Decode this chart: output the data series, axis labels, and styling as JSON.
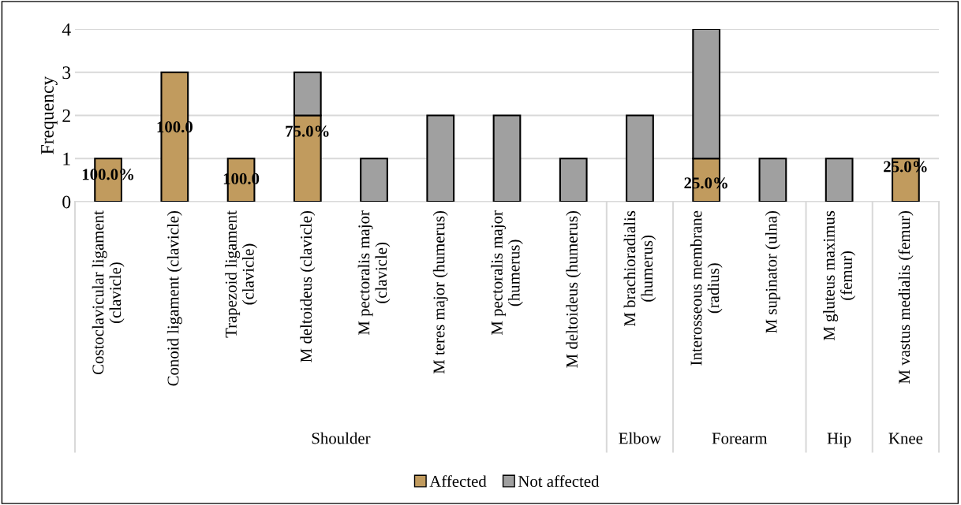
{
  "chart_data": {
    "type": "bar",
    "stacked": true,
    "ylabel": "Frequency",
    "categories": [
      "Costoclavicular ligament\n(clavicle)",
      "Conoid ligament (clavicle)",
      "Trapezoid ligament\n(clavicle)",
      "M deltoideus (clavicle)",
      "M pectoralis major\n(clavicle)",
      "M teres major (humerus)",
      "M pectoralis major\n(humerus)",
      "M deltoideus (humerus)",
      "M brachioradialis\n(humerus)",
      "Interosseous membrane\n(radius)",
      "M supinator (ulna)",
      "M gluteus maximus\n(femur)",
      "M vastus medialis (femur)"
    ],
    "series": [
      {
        "name": "Affected",
        "color": "#c19b5e",
        "values": [
          1,
          3,
          1,
          2,
          null,
          null,
          null,
          null,
          null,
          1,
          null,
          null,
          1
        ]
      },
      {
        "name": "Not affected",
        "color": "#a0a0a0",
        "values": [
          null,
          null,
          null,
          1,
          1,
          2,
          2,
          1,
          2,
          3,
          1,
          1,
          null
        ]
      }
    ],
    "annotations": [
      "Shoulder",
      "Elbow",
      "Forearm",
      "Hip",
      "Knee",
      "100.0%",
      "100.0",
      "100.0",
      "75.0%",
      "25.0%",
      "25.0%"
    ],
    "ylim": [
      0,
      4
    ],
    "yticks": [
      0,
      1,
      2,
      3,
      4
    ],
    "grid": "y",
    "legend": "bottom"
  }
}
